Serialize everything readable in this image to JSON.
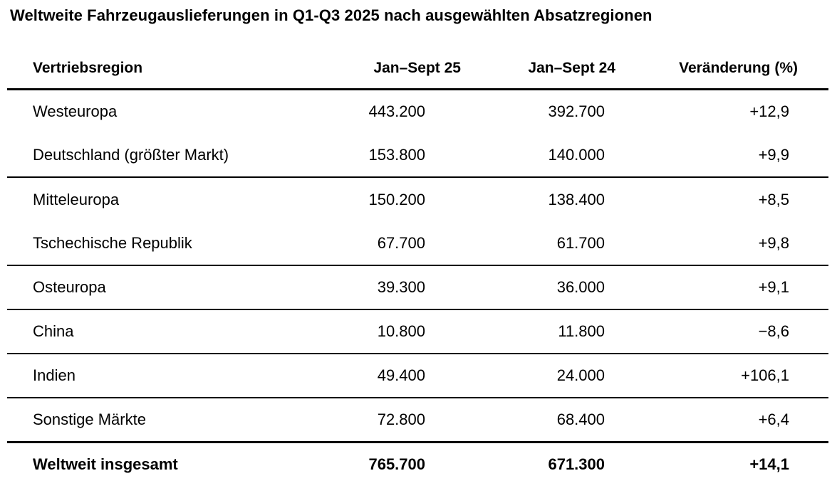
{
  "page": {
    "background_color": "#ffffff",
    "text_color": "#000000",
    "rule_color": "#000000"
  },
  "title": "Weltweite Fahrzeugauslieferungen in Q1-Q3 2025 nach ausgewählten Absatzregionen",
  "table": {
    "headers": {
      "region": "Vertriebsregion",
      "period_current": "Jan–Sept 25",
      "period_prior": "Jan–Sept 24",
      "change": "Veränderung (%)"
    },
    "rows": [
      {
        "region": "Westeuropa",
        "current": "443.200",
        "prior": "392.700",
        "change": "+12,9"
      },
      {
        "region": "Deutschland (größter Markt)",
        "current": "153.800",
        "prior": "140.000",
        "change": "+9,9"
      },
      {
        "region": "Mitteleuropa",
        "current": "150.200",
        "prior": "138.400",
        "change": "+8,5"
      },
      {
        "region": "Tschechische Republik",
        "current": "67.700",
        "prior": "61.700",
        "change": "+9,8"
      },
      {
        "region": "Osteuropa",
        "current": "39.300",
        "prior": "36.000",
        "change": "+9,1"
      },
      {
        "region": "China",
        "current": "10.800",
        "prior": "11.800",
        "change": "−8,6"
      },
      {
        "region": "Indien",
        "current": "49.400",
        "prior": "24.000",
        "change": "+106,1"
      },
      {
        "region": "Sonstige Märkte",
        "current": "72.800",
        "prior": "68.400",
        "change": "+6,4"
      }
    ],
    "total_row": {
      "region": "Weltweit insgesamt",
      "current": "765.700",
      "prior": "671.300",
      "change": "+14,1"
    }
  },
  "chart_data": {
    "type": "table",
    "title": "Weltweite Fahrzeugauslieferungen in Q1-Q3 2025 nach ausgewählten Absatzregionen",
    "columns": [
      "Vertriebsregion",
      "Jan–Sept 25",
      "Jan–Sept 24",
      "Veränderung (%)"
    ],
    "units": {
      "deliveries": "vehicles",
      "change": "percent"
    },
    "number_format": "de-DE",
    "rows": [
      {
        "region": "Westeuropa",
        "jan_sept_25": 443200,
        "jan_sept_24": 392700,
        "change_pct": 12.9,
        "group": "Westeuropa",
        "is_subrow": false
      },
      {
        "region": "Deutschland (größter Markt)",
        "jan_sept_25": 153800,
        "jan_sept_24": 140000,
        "change_pct": 9.9,
        "group": "Westeuropa",
        "is_subrow": true
      },
      {
        "region": "Mitteleuropa",
        "jan_sept_25": 150200,
        "jan_sept_24": 138400,
        "change_pct": 8.5,
        "group": "Mitteleuropa",
        "is_subrow": false
      },
      {
        "region": "Tschechische Republik",
        "jan_sept_25": 67700,
        "jan_sept_24": 61700,
        "change_pct": 9.8,
        "group": "Mitteleuropa",
        "is_subrow": true
      },
      {
        "region": "Osteuropa",
        "jan_sept_25": 39300,
        "jan_sept_24": 36000,
        "change_pct": 9.1,
        "group": "Osteuropa",
        "is_subrow": false
      },
      {
        "region": "China",
        "jan_sept_25": 10800,
        "jan_sept_24": 11800,
        "change_pct": -8.6,
        "group": "China",
        "is_subrow": false
      },
      {
        "region": "Indien",
        "jan_sept_25": 49400,
        "jan_sept_24": 24000,
        "change_pct": 106.1,
        "group": "Indien",
        "is_subrow": false
      },
      {
        "region": "Sonstige Märkte",
        "jan_sept_25": 72800,
        "jan_sept_24": 68400,
        "change_pct": 6.4,
        "group": "Sonstige Märkte",
        "is_subrow": false
      }
    ],
    "total": {
      "region": "Weltweit insgesamt",
      "jan_sept_25": 765700,
      "jan_sept_24": 671300,
      "change_pct": 14.1
    }
  }
}
